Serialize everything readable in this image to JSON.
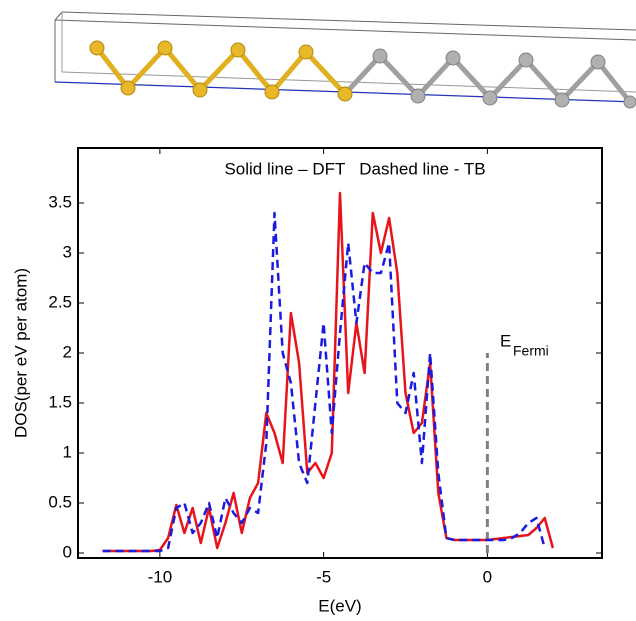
{
  "chart_data": {
    "type": "line",
    "xlabel": "E(eV)",
    "ylabel": "DOS(per eV per atom)",
    "legend_text": "Solid line – DFT   Dashed line - TB",
    "fermi_label": {
      "text": "E",
      "subscript": "Fermi"
    },
    "fermi_line": {
      "x": 0,
      "y": [
        0,
        2
      ],
      "color": "#808080"
    },
    "x": [
      -11.75,
      -11.5,
      -11.25,
      -11,
      -10.75,
      -10.5,
      -10.25,
      -10,
      -9.75,
      -9.5,
      -9.25,
      -9,
      -8.75,
      -8.5,
      -8.25,
      -8,
      -7.75,
      -7.5,
      -7.25,
      -7,
      -6.75,
      -6.5,
      -6.25,
      -6,
      -5.75,
      -5.5,
      -5.25,
      -5,
      -4.75,
      -4.5,
      -4.25,
      -4,
      -3.75,
      -3.5,
      -3.25,
      -3,
      -2.75,
      -2.5,
      -2.25,
      -2,
      -1.75,
      -1.5,
      -1.25,
      -1,
      -0.75,
      -0.5,
      -0.25,
      0,
      0.25,
      0.5,
      0.75,
      1,
      1.25,
      1.5,
      1.75,
      2
    ],
    "series": [
      {
        "name": "DFT",
        "color": "#e8141b",
        "dash": false,
        "values": [
          0.02,
          0.02,
          0.02,
          0.02,
          0.02,
          0.02,
          0.02,
          0.03,
          0.15,
          0.48,
          0.2,
          0.45,
          0.1,
          0.45,
          0.05,
          0.3,
          0.6,
          0.2,
          0.55,
          0.7,
          1.4,
          1.2,
          0.9,
          2.4,
          1.9,
          0.8,
          0.9,
          0.75,
          1.0,
          3.6,
          1.6,
          2.3,
          1.8,
          3.4,
          3.0,
          3.35,
          2.8,
          1.6,
          1.2,
          1.3,
          1.9,
          0.6,
          0.15,
          0.13,
          0.13,
          0.13,
          0.13,
          0.13,
          0.14,
          0.15,
          0.16,
          0.17,
          0.18,
          0.25,
          0.35,
          0.05
        ]
      },
      {
        "name": "TB",
        "color": "#1b1be0",
        "dash": true,
        "values": [
          0.02,
          0.02,
          0.02,
          0.02,
          0.02,
          0.02,
          0.02,
          0.02,
          0.05,
          0.45,
          0.5,
          0.2,
          0.3,
          0.5,
          0.15,
          0.55,
          0.4,
          0.3,
          0.45,
          0.4,
          1.1,
          3.4,
          2.0,
          1.7,
          0.9,
          0.7,
          1.5,
          2.3,
          1.2,
          2.2,
          3.1,
          2.3,
          2.9,
          2.8,
          2.8,
          3.1,
          1.5,
          1.4,
          1.8,
          0.9,
          2.0,
          0.8,
          0.15,
          0.13,
          0.13,
          0.13,
          0.13,
          0.13,
          0.13,
          0.13,
          0.15,
          0.2,
          0.3,
          0.35,
          0.05,
          null
        ]
      }
    ],
    "xlim": [
      -12.5,
      3.5
    ],
    "xticks": [
      -10,
      -5,
      0
    ],
    "ylim": [
      -0.05,
      4.05
    ],
    "yticks": [
      0,
      0.5,
      1,
      1.5,
      2,
      2.5,
      3,
      3.5
    ]
  }
}
